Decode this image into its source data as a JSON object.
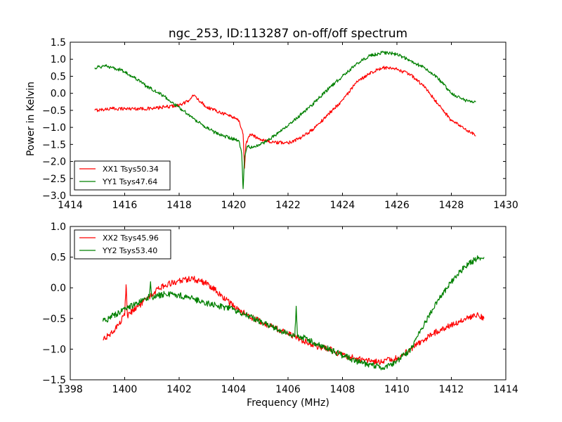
{
  "figure_title": "ngc_253, ID:113287 on-off/off spectrum",
  "colors": {
    "xx": "#ff0000",
    "yy": "#008000"
  },
  "chart_data": [
    {
      "type": "line",
      "title": "ngc_253, ID:113287 on-off/off spectrum",
      "xlabel": "",
      "ylabel": "Power in Kelvin",
      "xlim": [
        1414,
        1430
      ],
      "ylim": [
        -3.0,
        1.5
      ],
      "xticks": [
        1414,
        1416,
        1418,
        1420,
        1422,
        1424,
        1426,
        1428,
        1430
      ],
      "xtick_labels": [
        "1414",
        "1416",
        "1418",
        "1420",
        "1422",
        "1424",
        "1426",
        "1428",
        "1430"
      ],
      "yticks": [
        -3.0,
        -2.5,
        -2.0,
        -1.5,
        -1.0,
        -0.5,
        0.0,
        0.5,
        1.0,
        1.5
      ],
      "ytick_labels": [
        "−3.0",
        "−2.5",
        "−2.0",
        "−1.5",
        "−1.0",
        "−0.5",
        "0.0",
        "0.5",
        "1.0",
        "1.5"
      ],
      "legend_position": "lower-left",
      "series": [
        {
          "name": "XX1 Tsys50.34",
          "color": "#ff0000",
          "noise": 0.05,
          "x": [
            1414.9,
            1415.5,
            1416.0,
            1416.5,
            1417.0,
            1417.5,
            1418.0,
            1418.3,
            1418.5,
            1418.8,
            1419.0,
            1419.5,
            1420.0,
            1420.2,
            1420.35,
            1420.4,
            1420.45,
            1420.6,
            1421.0,
            1421.5,
            1422.0,
            1422.5,
            1423.0,
            1423.5,
            1424.0,
            1424.5,
            1425.0,
            1425.5,
            1426.0,
            1426.5,
            1427.0,
            1427.5,
            1428.0,
            1428.5,
            1428.9
          ],
          "y": [
            -0.5,
            -0.45,
            -0.45,
            -0.45,
            -0.45,
            -0.4,
            -0.35,
            -0.25,
            -0.05,
            -0.25,
            -0.4,
            -0.55,
            -0.7,
            -0.8,
            -1.2,
            -2.2,
            -1.5,
            -1.2,
            -1.35,
            -1.45,
            -1.45,
            -1.3,
            -1.0,
            -0.6,
            -0.2,
            0.3,
            0.6,
            0.75,
            0.7,
            0.55,
            0.2,
            -0.3,
            -0.8,
            -1.05,
            -1.25
          ]
        },
        {
          "name": "YY1 Tsys47.64",
          "color": "#008000",
          "noise": 0.05,
          "x": [
            1414.9,
            1415.3,
            1415.8,
            1416.3,
            1416.8,
            1417.3,
            1417.8,
            1418.3,
            1418.8,
            1419.3,
            1419.8,
            1420.2,
            1420.3,
            1420.35,
            1420.4,
            1420.5,
            1420.7,
            1421.0,
            1421.5,
            1422.0,
            1422.5,
            1423.0,
            1423.5,
            1424.0,
            1424.5,
            1425.0,
            1425.5,
            1426.0,
            1426.5,
            1427.0,
            1427.5,
            1428.0,
            1428.5,
            1428.9
          ],
          "y": [
            0.75,
            0.8,
            0.7,
            0.5,
            0.2,
            0.0,
            -0.3,
            -0.6,
            -0.9,
            -1.15,
            -1.3,
            -1.4,
            -1.8,
            -2.8,
            -1.9,
            -1.55,
            -1.6,
            -1.5,
            -1.25,
            -0.95,
            -0.6,
            -0.25,
            0.15,
            0.5,
            0.85,
            1.1,
            1.2,
            1.15,
            0.95,
            0.75,
            0.45,
            0.0,
            -0.2,
            -0.25
          ]
        }
      ]
    },
    {
      "type": "line",
      "title": "",
      "xlabel": "Frequency (MHz)",
      "ylabel": "",
      "xlim": [
        1398,
        1414
      ],
      "ylim": [
        -1.5,
        1.0
      ],
      "xticks": [
        1398,
        1400,
        1402,
        1404,
        1406,
        1408,
        1410,
        1412,
        1414
      ],
      "xtick_labels": [
        "1398",
        "1400",
        "1402",
        "1404",
        "1406",
        "1408",
        "1410",
        "1412",
        "1414"
      ],
      "yticks": [
        -1.5,
        -1.0,
        -0.5,
        0.0,
        0.5,
        1.0
      ],
      "ytick_labels": [
        "−1.5",
        "−1.0",
        "−0.5",
        "0.0",
        "0.5",
        "1.0"
      ],
      "legend_position": "upper-left",
      "series": [
        {
          "name": "XX2 Tsys45.96",
          "color": "#ff0000",
          "noise": 0.05,
          "x": [
            1399.2,
            1399.6,
            1400.0,
            1400.05,
            1400.1,
            1400.5,
            1401.0,
            1401.5,
            1402.0,
            1402.5,
            1403.0,
            1403.5,
            1404.0,
            1404.5,
            1405.0,
            1405.5,
            1406.0,
            1406.5,
            1407.0,
            1407.5,
            1408.0,
            1408.5,
            1409.0,
            1409.5,
            1410.0,
            1410.5,
            1411.0,
            1411.5,
            1412.0,
            1412.5,
            1413.0,
            1413.2
          ],
          "y": [
            -0.85,
            -0.7,
            -0.45,
            0.05,
            -0.45,
            -0.3,
            -0.1,
            0.05,
            0.12,
            0.15,
            0.08,
            -0.1,
            -0.3,
            -0.45,
            -0.55,
            -0.65,
            -0.75,
            -0.85,
            -0.95,
            -1.0,
            -1.1,
            -1.15,
            -1.2,
            -1.2,
            -1.15,
            -1.0,
            -0.85,
            -0.7,
            -0.6,
            -0.5,
            -0.45,
            -0.5
          ]
        },
        {
          "name": "YY2 Tsys53.40",
          "color": "#008000",
          "noise": 0.05,
          "x": [
            1399.2,
            1399.6,
            1400.0,
            1400.5,
            1400.9,
            1400.95,
            1401.0,
            1401.5,
            1402.0,
            1402.5,
            1403.0,
            1403.5,
            1404.0,
            1404.5,
            1405.0,
            1405.5,
            1406.0,
            1406.25,
            1406.3,
            1406.35,
            1406.5,
            1407.0,
            1407.5,
            1408.0,
            1408.5,
            1409.0,
            1409.5,
            1410.0,
            1410.5,
            1411.0,
            1411.5,
            1412.0,
            1412.5,
            1413.0,
            1413.2
          ],
          "y": [
            -0.55,
            -0.45,
            -0.35,
            -0.25,
            -0.15,
            0.1,
            -0.15,
            -0.1,
            -0.12,
            -0.18,
            -0.25,
            -0.3,
            -0.35,
            -0.45,
            -0.55,
            -0.65,
            -0.75,
            -0.8,
            -0.3,
            -0.8,
            -0.8,
            -0.9,
            -1.0,
            -1.1,
            -1.2,
            -1.25,
            -1.3,
            -1.2,
            -1.0,
            -0.6,
            -0.2,
            0.1,
            0.35,
            0.5,
            0.5
          ]
        }
      ]
    }
  ]
}
